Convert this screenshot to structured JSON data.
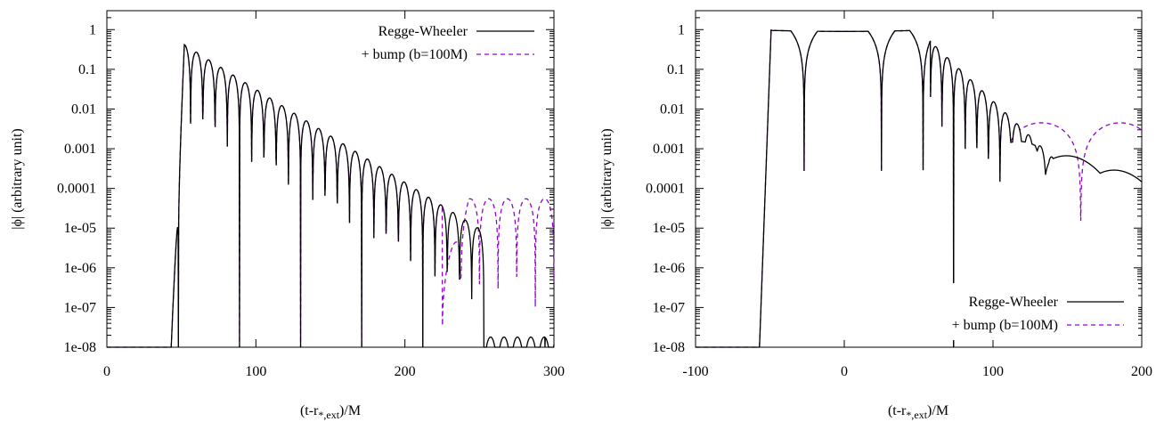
{
  "chart_data": [
    {
      "type": "line",
      "xlabel_main": "(t-r",
      "xlabel_sub": "*,ext",
      "xlabel_tail": ")/M",
      "ylabel": "|ϕ| (arbitrary unit)",
      "xlim": [
        0,
        300
      ],
      "ylim": [
        1e-08,
        3
      ],
      "yscale": "log",
      "xticks": [
        0,
        100,
        200,
        300
      ],
      "xticklabels": [
        "0",
        "100",
        "200",
        "300"
      ],
      "yticks": [
        1,
        0.1,
        0.01,
        0.001,
        0.0001,
        1e-05,
        1e-06,
        1e-07,
        1e-08
      ],
      "yticklabels": [
        "1",
        "0.1",
        "0.01",
        "0.001",
        "0.0001",
        "1e-05",
        "1e-06",
        "1e-07",
        "1e-08"
      ],
      "legend_position": "top-right",
      "series": [
        {
          "name": "Regge-Wheeler",
          "color": "#000000",
          "dash": "solid",
          "model": {
            "start": 42,
            "peak_t": 52,
            "peak": 0.42,
            "zero0": 48,
            "period": 8.2,
            "decay": 0.054,
            "end_t": 253,
            "end_floor": 1.8e-08,
            "late_amp": 0,
            "late_start": 0
          }
        },
        {
          "name": "+ bump (b=100M)",
          "color": "#9400d3",
          "dash": "dashed",
          "model": {
            "start": 42,
            "peak_t": 52,
            "peak": 0.42,
            "zero0": 48,
            "period": 8.2,
            "decay": 0.054,
            "end_t": 225,
            "end_floor": 6e-07,
            "late_amp": 5.5e-05,
            "late_start": 238
          }
        }
      ]
    },
    {
      "type": "line",
      "xlabel_main": "(t-r",
      "xlabel_sub": "*,ext",
      "xlabel_tail": ")/M",
      "ylabel": "|ϕ| (arbitrary unit)",
      "xlim": [
        -100,
        200
      ],
      "ylim": [
        1e-08,
        3
      ],
      "yscale": "log",
      "xticks": [
        -100,
        0,
        100,
        200
      ],
      "xticklabels": [
        "-100",
        "0",
        "100",
        "200"
      ],
      "yticks": [
        1,
        0.1,
        0.01,
        0.001,
        0.0001,
        1e-05,
        1e-06,
        1e-07,
        1e-08
      ],
      "yticklabels": [
        "1",
        "0.1",
        "0.01",
        "0.001",
        "0.0001",
        "1e-05",
        "1e-06",
        "1e-07",
        "1e-08"
      ],
      "legend_position": "bottom-right",
      "series": [
        {
          "name": "Regge-Wheeler",
          "color": "#000000",
          "dash": "solid",
          "model": {
            "kind": "rw_right"
          }
        },
        {
          "name": "+ bump (b=100M)",
          "color": "#9400d3",
          "dash": "dashed",
          "model": {
            "kind": "bump_right"
          }
        }
      ]
    }
  ]
}
